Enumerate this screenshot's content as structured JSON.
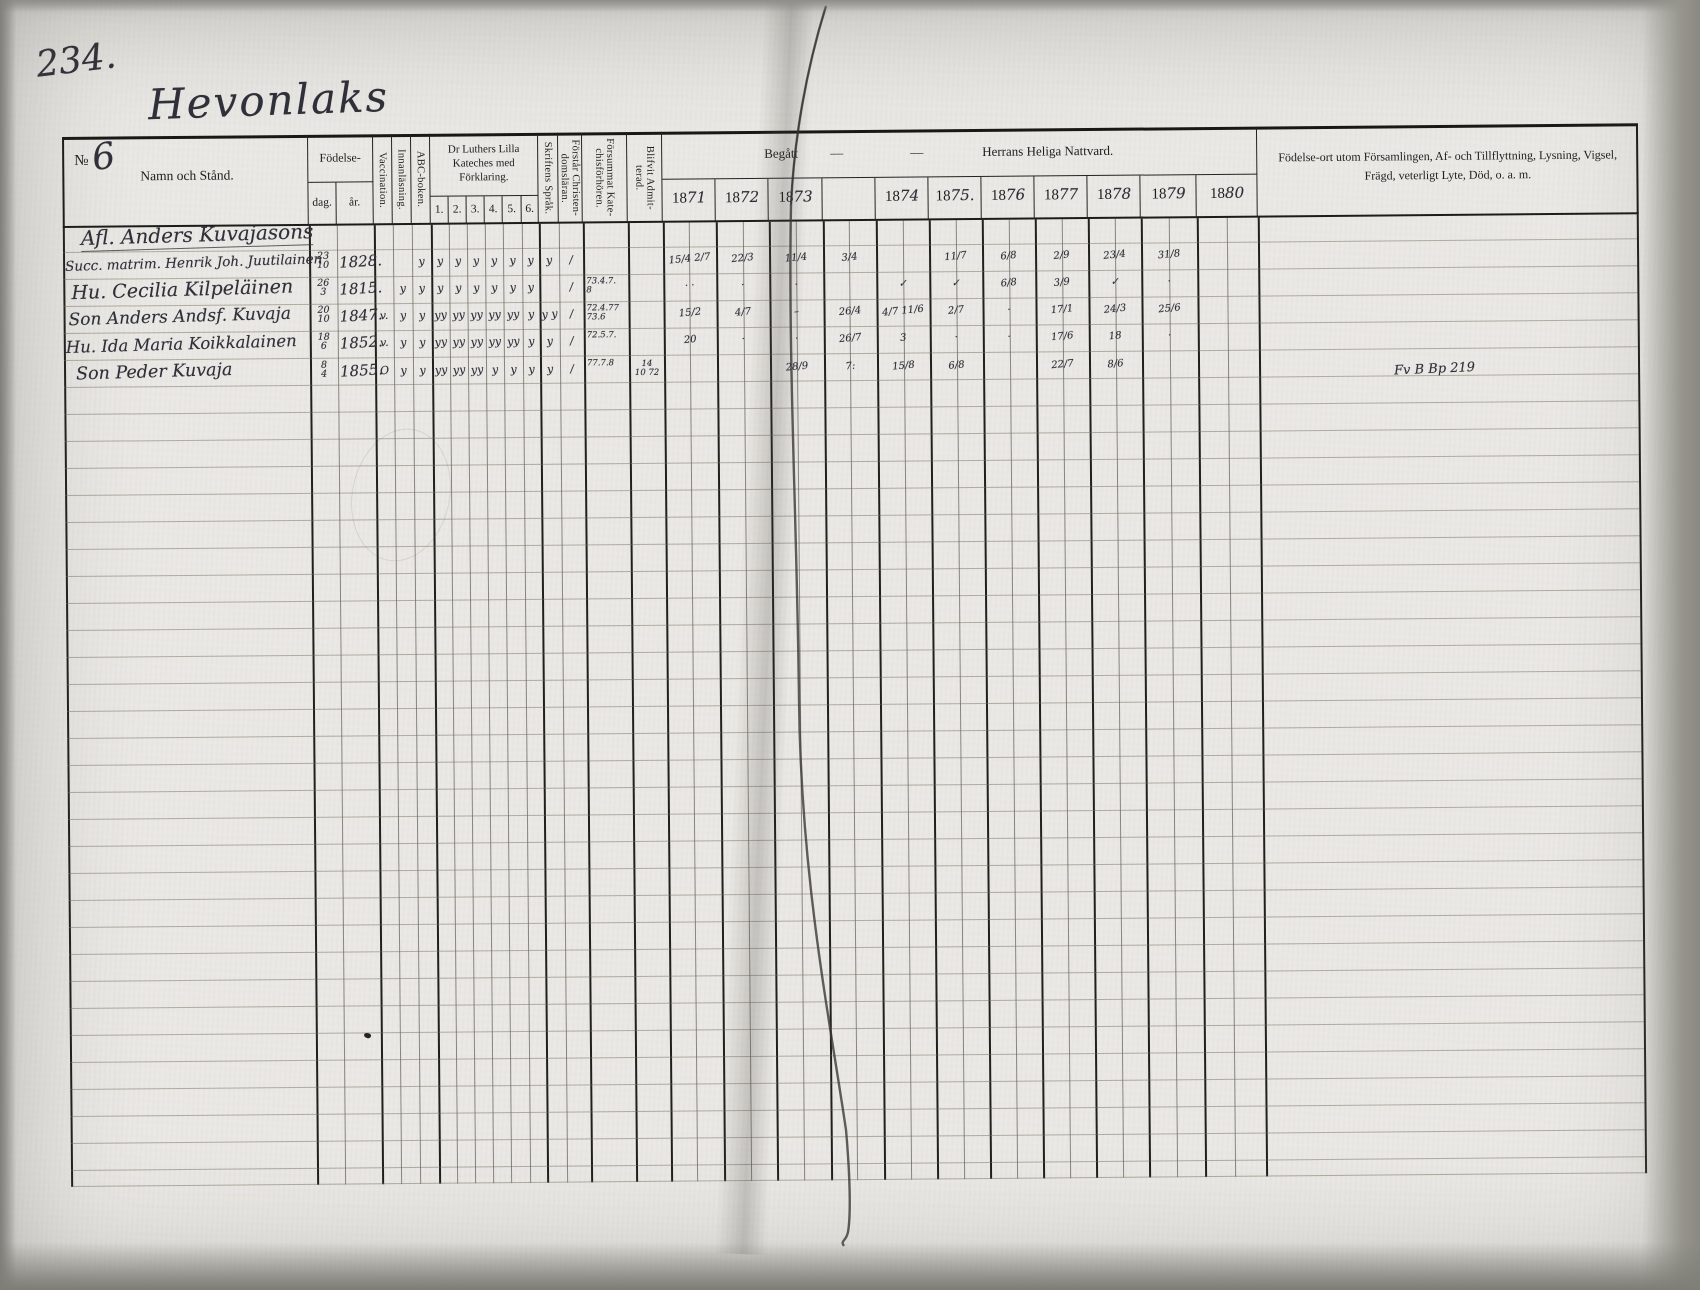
{
  "page": {
    "number": "234.",
    "title": "Hevonlaks"
  },
  "table": {
    "no_label": "№",
    "no_value": "6",
    "namn_header": "Namn och Stånd.",
    "fodelse": "Födelse-",
    "dag": "dag.",
    "ar": "år.",
    "vaccination": "Vaccination.",
    "innanlasning": "Innanläsning.",
    "abc": "ABC-boken.",
    "kateches": "Dr Luthers Lilla Kateches med Förklaring.",
    "kateches_nums": [
      "1.",
      "2.",
      "3.",
      "4.",
      "5.",
      "6."
    ],
    "skriftens": "Skriftens Språk.",
    "forstar_line1": "Förstår Christen-",
    "forstar_line2": "domsläran.",
    "forsummat_line1": "Försummat Kate-",
    "forsummat_line2": "chisförhören.",
    "admit_line1": "Blifvit Admit-",
    "admit_line2": "terad.",
    "begatt": "Begått",
    "dash1": "—",
    "dash2": "—",
    "nattvard": "Herrans Heliga Nattvard.",
    "year_prefix": "18",
    "years": [
      "71",
      "72",
      "73",
      "74",
      "75.",
      "76",
      "77",
      "78",
      "79",
      "80"
    ],
    "remarks_line1": "Födelse-ort utom Församlingen, Af- och Tillflyttning, Lysning, Vigsel,",
    "remarks_line2": "Frägd, veterligt Lyte, Död, o. a. m."
  },
  "rows": [
    {
      "name": "Afl. Anders Kuvajasons",
      "dag_num": "",
      "dag_den": "",
      "ar": "",
      "vacc": "",
      "innan": "",
      "abc": "",
      "k": [
        "",
        "",
        "",
        "",
        "",
        ""
      ],
      "sprak": "",
      "forstar": "",
      "note1": "",
      "note2": "",
      "admit1": "",
      "admit2": "",
      "c": {
        "1871": "",
        "1872": "",
        "1873": "",
        "f": "",
        "1874": "",
        "1875": "",
        "1876": "",
        "1877": "",
        "1878": "",
        "1879": "",
        "1880": ""
      },
      "remark": ""
    },
    {
      "name": "Succ. matrim. Henrik Joh. Juutilainen",
      "dag_num": "23",
      "dag_den": "10",
      "ar": "1828.",
      "vacc": "",
      "innan": "",
      "abc": "y",
      "k": [
        "y",
        "y",
        "y",
        "y",
        "y",
        "y"
      ],
      "sprak": "y",
      "forstar": "∕",
      "note1": "",
      "note2": "",
      "admit1": "",
      "admit2": "",
      "c": {
        "1871": "15/4 2/7",
        "1872": "22/3",
        "1873": "11/4",
        "f": "3/4",
        "1874": "",
        "1875": "11/7",
        "1876": "6/8",
        "1877": "2/9",
        "1878": "23/4",
        "1879": "31/8",
        "1880": ""
      },
      "remark": ""
    },
    {
      "name": "Hu. Cecilia Kilpeläinen",
      "dag_num": "26",
      "dag_den": "3",
      "ar": "1815.",
      "vacc": "",
      "innan": "y",
      "abc": "y",
      "k": [
        "y",
        "y",
        "y",
        "y",
        "y",
        "y"
      ],
      "sprak": "",
      "forstar": "∕",
      "note1": "73.4.7.",
      "note2": "8",
      "admit1": "",
      "admit2": "",
      "c": {
        "1871": "· ·",
        "1872": "·",
        "1873": "·",
        "f": "",
        "1874": "✓",
        "1875": "✓",
        "1876": "6/8",
        "1877": "3/9",
        "1878": "✓",
        "1879": "·",
        "1880": ""
      },
      "remark": ""
    },
    {
      "name": "Son Anders Andsf. Kuvaja",
      "dag_num": "20",
      "dag_den": "10",
      "ar": "1847.",
      "vacc": "v.",
      "innan": "y",
      "abc": "y",
      "k": [
        "yy",
        "yy",
        "yy",
        "yy",
        "yy",
        "y"
      ],
      "sprak": "y y",
      "forstar": "∕",
      "note1": "72.4.77",
      "note2": "73.6",
      "admit1": "",
      "admit2": "",
      "c": {
        "1871": "15/2",
        "1872": "4/7",
        "1873": "–",
        "f": "26/4",
        "1874": "4/7 11/6",
        "1875": "2/7",
        "1876": "·",
        "1877": "17/1",
        "1878": "24/3",
        "1879": "25/6",
        "1880": ""
      },
      "remark": ""
    },
    {
      "name": "Hu. Ida Maria Koikkalainen",
      "dag_num": "18",
      "dag_den": "6",
      "ar": "1852.",
      "vacc": "v.",
      "innan": "y",
      "abc": "y",
      "k": [
        "yy",
        "yy",
        "yy",
        "yy",
        "yy",
        "y"
      ],
      "sprak": "y",
      "forstar": "∕",
      "note1": "72.5.7.",
      "note2": "",
      "admit1": "",
      "admit2": "",
      "c": {
        "1871": "20",
        "1872": "·",
        "1873": "·",
        "f": "26/7",
        "1874": "3",
        "1875": "·",
        "1876": "·",
        "1877": "17/6",
        "1878": "18",
        "1879": "·",
        "1880": ""
      },
      "remark": ""
    },
    {
      "name": "Son Peder Kuvaja",
      "dag_num": "8",
      "dag_den": "4",
      "ar": "1855.",
      "vacc": "O",
      "innan": "y",
      "abc": "y",
      "k": [
        "yy",
        "yy",
        "yy",
        "y",
        "y",
        "y"
      ],
      "sprak": "y",
      "forstar": "∕",
      "note1": "77.7.8",
      "note2": "",
      "admit1": "14",
      "admit2": "10 72",
      "c": {
        "1871": "",
        "1872": "",
        "1873": "28/9",
        "f": "7:",
        "1874": "15/8",
        "1875": "6/8",
        "1876": "",
        "1877": "22/7",
        "1878": "8/6",
        "1879": "",
        "1880": ""
      },
      "remark": "Fv B Bp 219"
    }
  ]
}
